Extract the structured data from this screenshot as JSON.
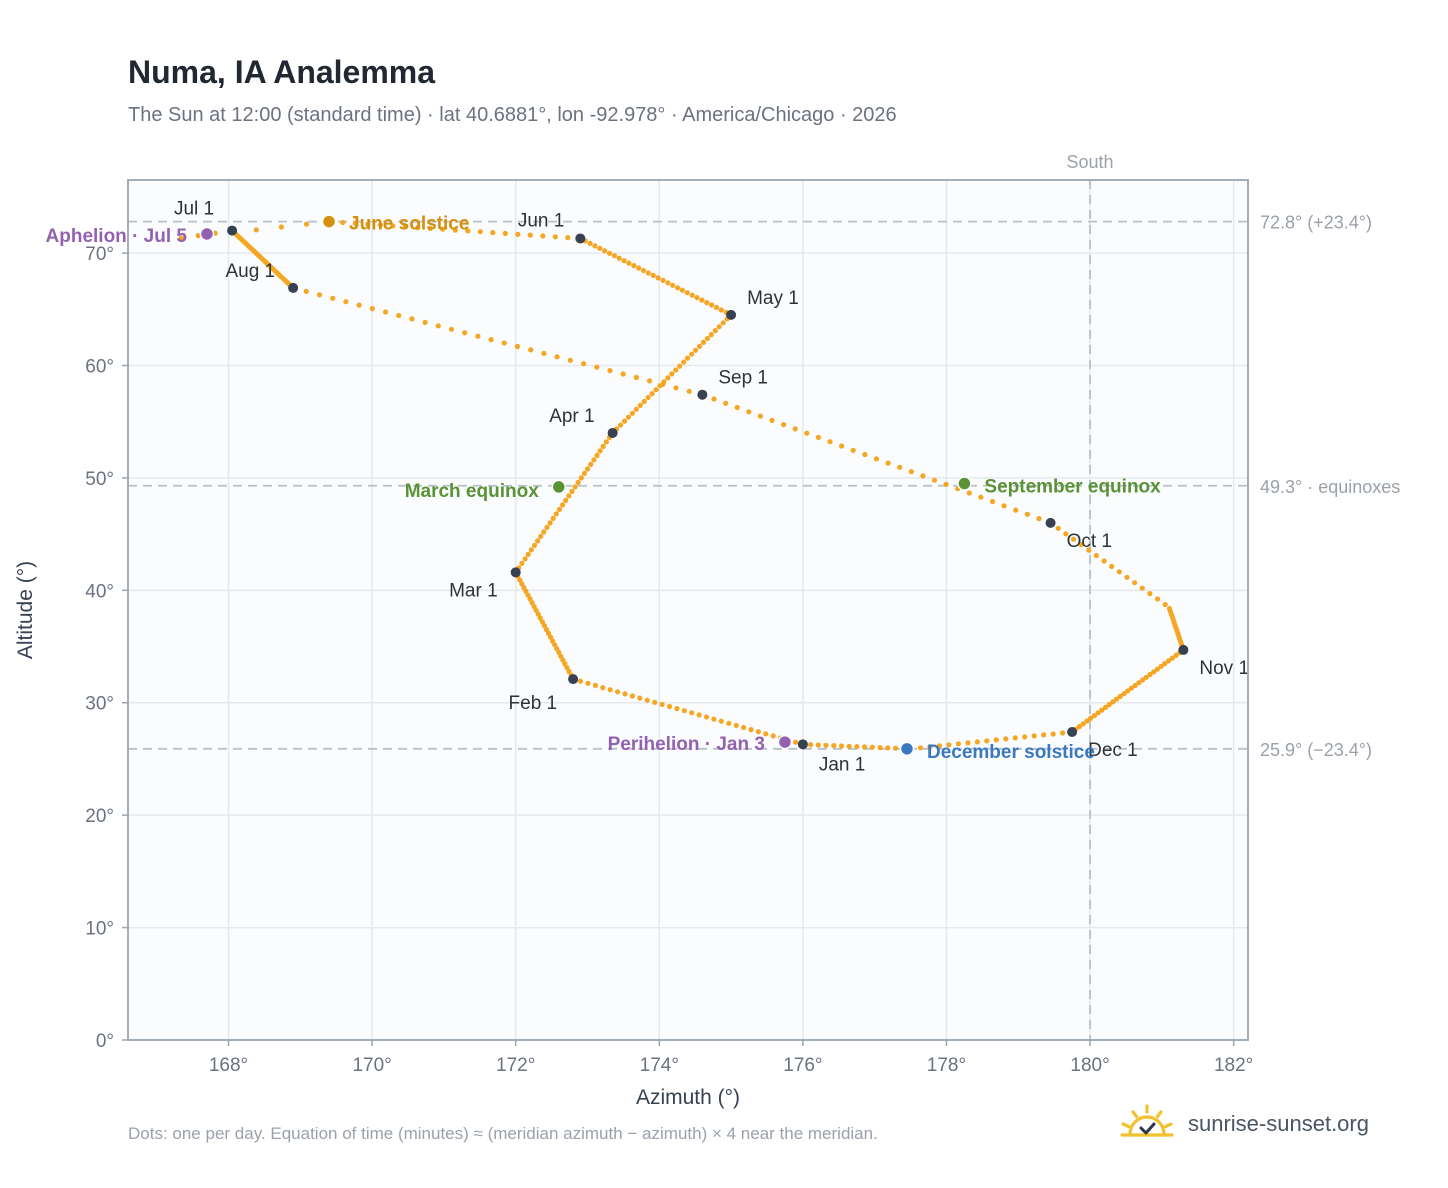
{
  "title": "Numa, IA Analemma",
  "subtitle": "The Sun at 12:00 (standard time) · lat 40.6881°, lon -92.978° · America/Chicago · 2026",
  "footnote": "Dots: one per day. Equation of time (minutes) ≈ (meridian azimuth − azimuth) × 4 near the meridian.",
  "brand": {
    "text": "sunrise-sunset.org",
    "icon": "sun-logo-icon"
  },
  "colors": {
    "curve": "#f5a623",
    "month_marker": "#374151",
    "solstice_june": "#d4900c",
    "solstice_december": "#3a78c2",
    "equinox": "#5a9236",
    "apsis": "#9460b0",
    "reference_line": "#b8c0c8",
    "plot_background": "#fafcfe",
    "grid": "#e5e9ee"
  },
  "chart_data": {
    "type": "scatter",
    "xlabel": "Azimuth (°)",
    "ylabel": "Altitude (°)",
    "xlim": [
      166.6,
      182.2
    ],
    "ylim": [
      0,
      76.5
    ],
    "x_ticks": [
      168,
      170,
      172,
      174,
      176,
      178,
      180,
      182
    ],
    "x_tick_labels": [
      "168°",
      "170°",
      "172°",
      "174°",
      "176°",
      "178°",
      "180°",
      "182°"
    ],
    "y_ticks": [
      0,
      10,
      20,
      30,
      40,
      50,
      60,
      70
    ],
    "y_tick_labels": [
      "0°",
      "10°",
      "20°",
      "30°",
      "40°",
      "50°",
      "60°",
      "70°"
    ],
    "grid": true,
    "meridian": {
      "azimuth": 180,
      "label": "South"
    },
    "reference_lines": [
      {
        "altitude": 72.8,
        "label": "72.8° (+23.4°)"
      },
      {
        "altitude": 49.3,
        "label": "49.3° · equinoxes"
      },
      {
        "altitude": 25.9,
        "label": "25.9° (−23.4°)"
      }
    ],
    "month_markers": [
      {
        "label": "Jan 1",
        "azimuth": 176.0,
        "altitude": 26.3
      },
      {
        "label": "Feb 1",
        "azimuth": 172.8,
        "altitude": 32.1
      },
      {
        "label": "Mar 1",
        "azimuth": 172.0,
        "altitude": 41.6
      },
      {
        "label": "Apr 1",
        "azimuth": 173.35,
        "altitude": 54.0
      },
      {
        "label": "May 1",
        "azimuth": 175.0,
        "altitude": 64.5
      },
      {
        "label": "Jun 1",
        "azimuth": 172.9,
        "altitude": 71.3
      },
      {
        "label": "Jul 1",
        "azimuth": 168.05,
        "altitude": 72.0
      },
      {
        "label": "Aug 1",
        "azimuth": 168.9,
        "altitude": 66.9
      },
      {
        "label": "Sep 1",
        "azimuth": 174.6,
        "altitude": 57.4
      },
      {
        "label": "Oct 1",
        "azimuth": 179.45,
        "altitude": 46.0
      },
      {
        "label": "Nov 1",
        "azimuth": 181.3,
        "altitude": 34.7
      },
      {
        "label": "Dec 1",
        "azimuth": 179.75,
        "altitude": 27.4
      }
    ],
    "events": [
      {
        "label": "June solstice",
        "azimuth": 169.4,
        "altitude": 72.8,
        "kind": "solstice_june"
      },
      {
        "label": "December solstice",
        "azimuth": 177.45,
        "altitude": 25.9,
        "kind": "solstice_december"
      },
      {
        "label": "March equinox",
        "azimuth": 172.6,
        "altitude": 49.2,
        "kind": "equinox"
      },
      {
        "label": "September equinox",
        "azimuth": 178.25,
        "altitude": 49.5,
        "kind": "equinox"
      },
      {
        "label": "Aphelion · Jul 5",
        "azimuth": 167.7,
        "altitude": 71.7,
        "kind": "apsis"
      },
      {
        "label": "Perihelion · Jan 3",
        "azimuth": 175.75,
        "altitude": 26.5,
        "kind": "apsis"
      }
    ]
  }
}
